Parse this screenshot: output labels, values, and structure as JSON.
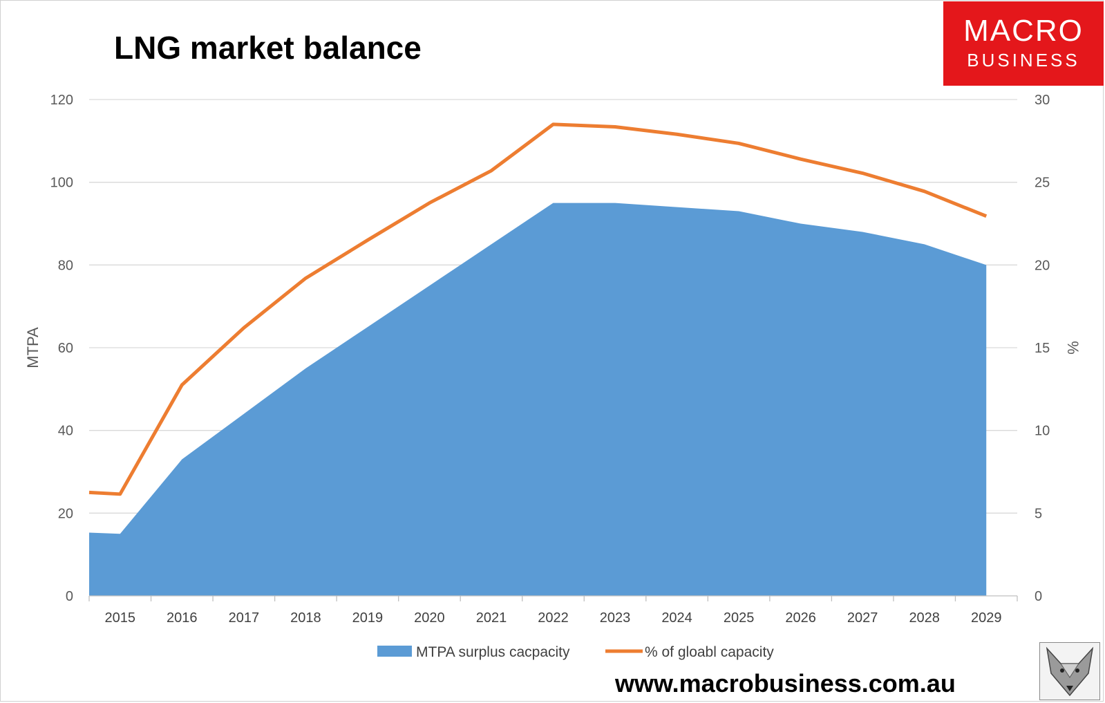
{
  "chart_data": {
    "type": "area",
    "title": "LNG market balance",
    "categories": [
      "2015",
      "2016",
      "2017",
      "2018",
      "2019",
      "2020",
      "2021",
      "2022",
      "2023",
      "2024",
      "2025",
      "2026",
      "2027",
      "2028",
      "2029"
    ],
    "y_left": {
      "label": "MTPA",
      "min": 0,
      "max": 120,
      "ticks": [
        0,
        20,
        40,
        60,
        80,
        100,
        120
      ]
    },
    "y_right": {
      "label": "%",
      "min": 0,
      "max": 30,
      "ticks": [
        0,
        5,
        10,
        15,
        20,
        25,
        30
      ]
    },
    "series": [
      {
        "name": "MTPA surplus cacpacity",
        "type": "area",
        "axis": "left",
        "color": "#5b9bd5",
        "points": [
          [
            2014.5,
            15.3
          ],
          [
            2015,
            15
          ],
          [
            2016,
            33
          ],
          [
            2017,
            44
          ],
          [
            2018,
            55
          ],
          [
            2019,
            65
          ],
          [
            2020,
            75
          ],
          [
            2021,
            85
          ],
          [
            2022,
            95
          ],
          [
            2023,
            95
          ],
          [
            2024,
            94
          ],
          [
            2025,
            93
          ],
          [
            2026,
            90
          ],
          [
            2027,
            88
          ],
          [
            2028,
            85
          ],
          [
            2029,
            80
          ]
        ]
      },
      {
        "name": "% of gloabl capacity",
        "type": "line",
        "axis": "right",
        "color": "#ed7d31",
        "points": [
          [
            2014.5,
            6.25
          ],
          [
            2015,
            6.15
          ],
          [
            2016,
            12.75
          ],
          [
            2017,
            16.2
          ],
          [
            2018,
            19.2
          ],
          [
            2019,
            21.5
          ],
          [
            2020,
            23.75
          ],
          [
            2021,
            25.7
          ],
          [
            2022,
            28.5
          ],
          [
            2023,
            28.35
          ],
          [
            2024,
            27.9
          ],
          [
            2025,
            27.35
          ],
          [
            2026,
            26.4
          ],
          [
            2027,
            25.55
          ],
          [
            2028,
            24.45
          ],
          [
            2029,
            22.95
          ]
        ]
      }
    ],
    "legend_position": "bottom",
    "gridlines": true
  },
  "branding": {
    "logo_line1": "MACRO",
    "logo_line2": "BUSINESS",
    "website": "www.macrobusiness.com.au"
  }
}
